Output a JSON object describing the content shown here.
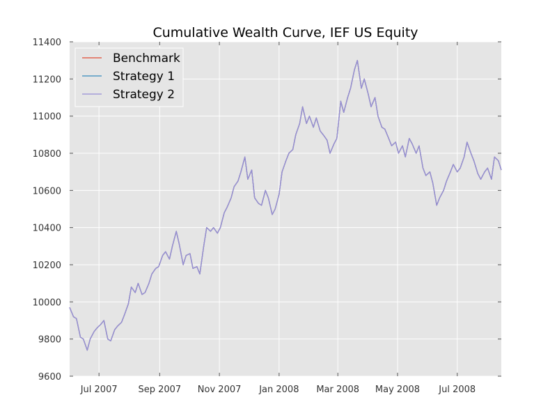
{
  "chart_data": {
    "type": "line",
    "title": "Cumulative Wealth Curve, IEF US Equity",
    "xlabel": "",
    "ylabel": "",
    "ylim": [
      9600,
      11400
    ],
    "y_ticks": [
      9600,
      9800,
      10000,
      10200,
      10400,
      10600,
      10800,
      11000,
      11200,
      11400
    ],
    "x_ticks": [
      {
        "date": "2007-07-01",
        "label": "Jul 2007"
      },
      {
        "date": "2007-09-01",
        "label": "Sep 2007"
      },
      {
        "date": "2007-11-01",
        "label": "Nov 2007"
      },
      {
        "date": "2008-01-01",
        "label": "Jan 2008"
      },
      {
        "date": "2008-03-01",
        "label": "Mar 2008"
      },
      {
        "date": "2008-05-01",
        "label": "May 2008"
      },
      {
        "date": "2008-07-01",
        "label": "Jul 2008"
      }
    ],
    "xlim": [
      "2007-06-01",
      "2008-08-15"
    ],
    "grid": true,
    "legend_position": "top-left",
    "plot_background": "#e5e5e5",
    "x": [
      "2007-06-01",
      "2007-06-05",
      "2007-06-08",
      "2007-06-12",
      "2007-06-15",
      "2007-06-19",
      "2007-06-22",
      "2007-06-26",
      "2007-06-29",
      "2007-07-03",
      "2007-07-06",
      "2007-07-10",
      "2007-07-13",
      "2007-07-17",
      "2007-07-20",
      "2007-07-24",
      "2007-07-27",
      "2007-07-31",
      "2007-08-03",
      "2007-08-07",
      "2007-08-10",
      "2007-08-14",
      "2007-08-17",
      "2007-08-21",
      "2007-08-24",
      "2007-08-28",
      "2007-08-31",
      "2007-09-04",
      "2007-09-07",
      "2007-09-11",
      "2007-09-14",
      "2007-09-18",
      "2007-09-21",
      "2007-09-25",
      "2007-09-28",
      "2007-10-02",
      "2007-10-05",
      "2007-10-09",
      "2007-10-12",
      "2007-10-16",
      "2007-10-19",
      "2007-10-23",
      "2007-10-26",
      "2007-10-30",
      "2007-11-02",
      "2007-11-06",
      "2007-11-09",
      "2007-11-13",
      "2007-11-16",
      "2007-11-20",
      "2007-11-23",
      "2007-11-27",
      "2007-11-30",
      "2007-12-04",
      "2007-12-07",
      "2007-12-11",
      "2007-12-14",
      "2007-12-18",
      "2007-12-21",
      "2007-12-25",
      "2007-12-28",
      "2008-01-01",
      "2008-01-04",
      "2008-01-08",
      "2008-01-11",
      "2008-01-15",
      "2008-01-18",
      "2008-01-22",
      "2008-01-25",
      "2008-01-29",
      "2008-02-01",
      "2008-02-05",
      "2008-02-08",
      "2008-02-12",
      "2008-02-15",
      "2008-02-19",
      "2008-02-22",
      "2008-02-26",
      "2008-02-29",
      "2008-03-04",
      "2008-03-07",
      "2008-03-11",
      "2008-03-14",
      "2008-03-18",
      "2008-03-21",
      "2008-03-25",
      "2008-03-28",
      "2008-04-01",
      "2008-04-04",
      "2008-04-08",
      "2008-04-11",
      "2008-04-15",
      "2008-04-18",
      "2008-04-22",
      "2008-04-25",
      "2008-04-29",
      "2008-05-02",
      "2008-05-06",
      "2008-05-09",
      "2008-05-13",
      "2008-05-16",
      "2008-05-20",
      "2008-05-23",
      "2008-05-27",
      "2008-05-30",
      "2008-06-03",
      "2008-06-06",
      "2008-06-10",
      "2008-06-13",
      "2008-06-17",
      "2008-06-20",
      "2008-06-24",
      "2008-06-27",
      "2008-07-01",
      "2008-07-04",
      "2008-07-08",
      "2008-07-11",
      "2008-07-15",
      "2008-07-18",
      "2008-07-22",
      "2008-07-25",
      "2008-07-29",
      "2008-08-01",
      "2008-08-05",
      "2008-08-08",
      "2008-08-12",
      "2008-08-15"
    ],
    "series": [
      {
        "name": "Benchmark",
        "color": "#e24a33",
        "values": [
          9970,
          9920,
          9910,
          9810,
          9800,
          9740,
          9800,
          9840,
          9860,
          9880,
          9900,
          9800,
          9790,
          9850,
          9870,
          9890,
          9930,
          9990,
          10080,
          10050,
          10100,
          10040,
          10050,
          10100,
          10150,
          10180,
          10190,
          10250,
          10270,
          10230,
          10300,
          10380,
          10310,
          10200,
          10250,
          10260,
          10180,
          10190,
          10150,
          10300,
          10400,
          10380,
          10400,
          10370,
          10400,
          10480,
          10510,
          10560,
          10620,
          10650,
          10700,
          10780,
          10660,
          10710,
          10560,
          10530,
          10520,
          10600,
          10560,
          10470,
          10500,
          10580,
          10700,
          10760,
          10800,
          10820,
          10900,
          10960,
          11050,
          10960,
          11000,
          10940,
          10990,
          10920,
          10900,
          10870,
          10800,
          10850,
          10880,
          11080,
          11020,
          11100,
          11150,
          11250,
          11300,
          11150,
          11200,
          11120,
          11050,
          11100,
          11000,
          10940,
          10930,
          10880,
          10840,
          10860,
          10800,
          10840,
          10780,
          10880,
          10850,
          10800,
          10840,
          10720,
          10680,
          10700,
          10640,
          10520,
          10560,
          10600,
          10650,
          10700,
          10740,
          10700,
          10720,
          10780,
          10860,
          10800,
          10760,
          10690,
          10660,
          10700,
          10720,
          10660,
          10780,
          10760,
          10710
        ]
      },
      {
        "name": "Strategy 1",
        "color": "#348abd",
        "values": [
          9970,
          9920,
          9910,
          9810,
          9800,
          9740,
          9800,
          9840,
          9860,
          9880,
          9900,
          9800,
          9790,
          9850,
          9870,
          9890,
          9930,
          9990,
          10080,
          10050,
          10100,
          10040,
          10050,
          10100,
          10150,
          10180,
          10190,
          10250,
          10270,
          10230,
          10300,
          10380,
          10310,
          10200,
          10250,
          10260,
          10180,
          10190,
          10150,
          10300,
          10400,
          10380,
          10400,
          10370,
          10400,
          10480,
          10510,
          10560,
          10620,
          10650,
          10700,
          10780,
          10660,
          10710,
          10560,
          10530,
          10520,
          10600,
          10560,
          10470,
          10500,
          10580,
          10700,
          10760,
          10800,
          10820,
          10900,
          10960,
          11050,
          10960,
          11000,
          10940,
          10990,
          10920,
          10900,
          10870,
          10800,
          10850,
          10880,
          11080,
          11020,
          11100,
          11150,
          11250,
          11300,
          11150,
          11200,
          11120,
          11050,
          11100,
          11000,
          10940,
          10930,
          10880,
          10840,
          10860,
          10800,
          10840,
          10780,
          10880,
          10850,
          10800,
          10840,
          10720,
          10680,
          10700,
          10640,
          10520,
          10560,
          10600,
          10650,
          10700,
          10740,
          10700,
          10720,
          10780,
          10860,
          10800,
          10760,
          10690,
          10660,
          10700,
          10720,
          10660,
          10780,
          10760,
          10710
        ]
      },
      {
        "name": "Strategy 2",
        "color": "#988ed5",
        "values": [
          9970,
          9920,
          9910,
          9810,
          9800,
          9740,
          9800,
          9840,
          9860,
          9880,
          9900,
          9800,
          9790,
          9850,
          9870,
          9890,
          9930,
          9990,
          10080,
          10050,
          10100,
          10040,
          10050,
          10100,
          10150,
          10180,
          10190,
          10250,
          10270,
          10230,
          10300,
          10380,
          10310,
          10200,
          10250,
          10260,
          10180,
          10190,
          10150,
          10300,
          10400,
          10380,
          10400,
          10370,
          10400,
          10480,
          10510,
          10560,
          10620,
          10650,
          10700,
          10780,
          10660,
          10710,
          10560,
          10530,
          10520,
          10600,
          10560,
          10470,
          10500,
          10580,
          10700,
          10760,
          10800,
          10820,
          10900,
          10960,
          11050,
          10960,
          11000,
          10940,
          10990,
          10920,
          10900,
          10870,
          10800,
          10850,
          10880,
          11080,
          11020,
          11100,
          11150,
          11250,
          11300,
          11150,
          11200,
          11120,
          11050,
          11100,
          11000,
          10940,
          10930,
          10880,
          10840,
          10860,
          10800,
          10840,
          10780,
          10880,
          10850,
          10800,
          10840,
          10720,
          10680,
          10700,
          10640,
          10520,
          10560,
          10600,
          10650,
          10700,
          10740,
          10700,
          10720,
          10780,
          10860,
          10800,
          10760,
          10690,
          10660,
          10700,
          10720,
          10660,
          10780,
          10760,
          10710
        ]
      }
    ]
  }
}
